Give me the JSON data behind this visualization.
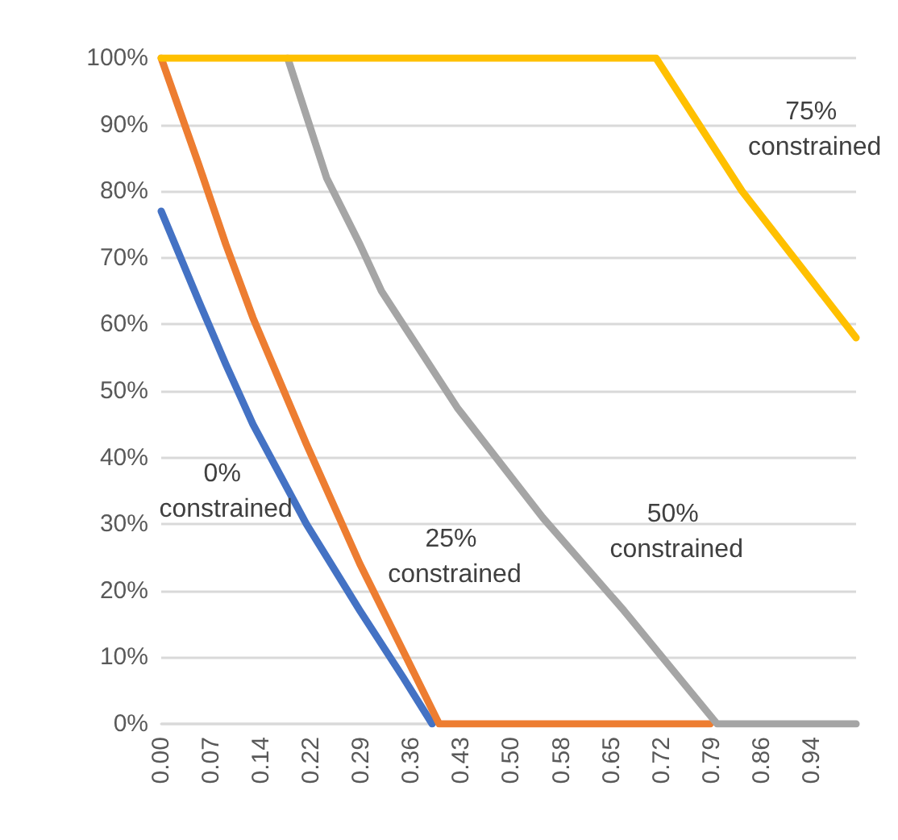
{
  "chart_data": {
    "type": "line",
    "xlim": [
      0,
      1
    ],
    "xticks": [
      {
        "value": 0,
        "label": "0.00"
      },
      {
        "value": 0.072,
        "label": "0.07"
      },
      {
        "value": 0.144,
        "label": "0.14"
      },
      {
        "value": 0.216,
        "label": "0.22"
      },
      {
        "value": 0.288,
        "label": "0.29"
      },
      {
        "value": 0.36,
        "label": "0.36"
      },
      {
        "value": 0.432,
        "label": "0.43"
      },
      {
        "value": 0.504,
        "label": "0.50"
      },
      {
        "value": 0.576,
        "label": "0.58"
      },
      {
        "value": 0.648,
        "label": "0.65"
      },
      {
        "value": 0.72,
        "label": "0.72"
      },
      {
        "value": 0.792,
        "label": "0.79"
      },
      {
        "value": 0.864,
        "label": "0.86"
      },
      {
        "value": 0.936,
        "label": "0.94"
      }
    ],
    "ylim": [
      0,
      100
    ],
    "yticks": [
      {
        "value": 0,
        "label": "0%"
      },
      {
        "value": 10,
        "label": "10%"
      },
      {
        "value": 20,
        "label": "20%"
      },
      {
        "value": 30,
        "label": "30%"
      },
      {
        "value": 40,
        "label": "40%"
      },
      {
        "value": 50,
        "label": "50%"
      },
      {
        "value": 60,
        "label": "60%"
      },
      {
        "value": 70,
        "label": "70%"
      },
      {
        "value": 80,
        "label": "80%"
      },
      {
        "value": 90,
        "label": "90%"
      },
      {
        "value": 100,
        "label": "100%"
      }
    ],
    "grid": "y",
    "marker": "none",
    "line_style": "solid",
    "series": [
      {
        "name": "0% constrained",
        "color": "#4472c4",
        "x": [
          0,
          0.054,
          0.093,
          0.132,
          0.209,
          0.286,
          0.348,
          0.39
        ],
        "values": [
          77,
          63.5,
          54,
          45,
          30,
          17,
          7,
          0
        ]
      },
      {
        "name": "25% constrained",
        "color": "#ed7d31",
        "x": [
          0,
          0.054,
          0.093,
          0.132,
          0.209,
          0.286,
          0.348,
          0.4,
          0.79
        ],
        "values": [
          100,
          84,
          72,
          61,
          42,
          24,
          11,
          0,
          0
        ]
      },
      {
        "name": "50% constrained",
        "color": "#a5a5a5",
        "x": [
          0.182,
          0.238,
          0.286,
          0.317,
          0.426,
          0.549,
          0.666,
          0.8,
          1
        ],
        "values": [
          100,
          82,
          72,
          65,
          47.5,
          31,
          17,
          0,
          0
        ]
      },
      {
        "name": "75% constrained",
        "color": "#ffc000",
        "x": [
          0,
          0.712,
          0.836,
          1
        ],
        "values": [
          100,
          100,
          80,
          58
        ]
      }
    ]
  }
}
